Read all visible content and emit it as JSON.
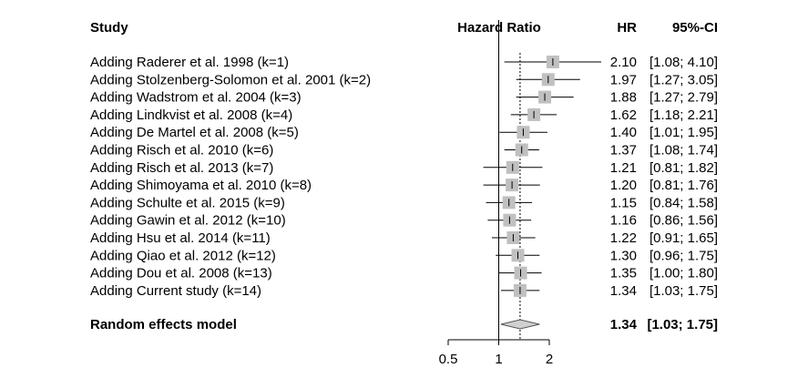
{
  "chart_data": {
    "type": "forest",
    "headers": {
      "study": "Study",
      "axis": "Hazard Ratio",
      "hr": "HR",
      "ci": "95%-CI"
    },
    "x_scale": "log",
    "xlim": [
      0.5,
      2
    ],
    "x_ticks": [
      {
        "value": 0.5,
        "label": "0.5"
      },
      {
        "value": 1,
        "label": "1"
      },
      {
        "value": 2,
        "label": "2"
      }
    ],
    "reference_line": 1,
    "pooled_line": 1.34,
    "studies": [
      {
        "label": "Adding Raderer et al. 1998 (k=1)",
        "hr": 2.1,
        "lower": 1.08,
        "upper": 4.1,
        "hr_text": "2.10",
        "ci_text": "[1.08; 4.10]"
      },
      {
        "label": "Adding Stolzenberg-Solomon et al. 2001 (k=2)",
        "hr": 1.97,
        "lower": 1.27,
        "upper": 3.05,
        "hr_text": "1.97",
        "ci_text": "[1.27; 3.05]"
      },
      {
        "label": "Adding Wadstrom et al. 2004 (k=3)",
        "hr": 1.88,
        "lower": 1.27,
        "upper": 2.79,
        "hr_text": "1.88",
        "ci_text": "[1.27; 2.79]"
      },
      {
        "label": "Adding Lindkvist et al. 2008 (k=4)",
        "hr": 1.62,
        "lower": 1.18,
        "upper": 2.21,
        "hr_text": "1.62",
        "ci_text": "[1.18; 2.21]"
      },
      {
        "label": "Adding De Martel et al. 2008 (k=5)",
        "hr": 1.4,
        "lower": 1.01,
        "upper": 1.95,
        "hr_text": "1.40",
        "ci_text": "[1.01; 1.95]"
      },
      {
        "label": "Adding Risch et al. 2010 (k=6)",
        "hr": 1.37,
        "lower": 1.08,
        "upper": 1.74,
        "hr_text": "1.37",
        "ci_text": "[1.08; 1.74]"
      },
      {
        "label": "Adding Risch et al. 2013 (k=7)",
        "hr": 1.21,
        "lower": 0.81,
        "upper": 1.82,
        "hr_text": "1.21",
        "ci_text": "[0.81; 1.82]"
      },
      {
        "label": "Adding Shimoyama et al. 2010 (k=8)",
        "hr": 1.2,
        "lower": 0.81,
        "upper": 1.76,
        "hr_text": "1.20",
        "ci_text": "[0.81; 1.76]"
      },
      {
        "label": "Adding Schulte et al. 2015 (k=9)",
        "hr": 1.15,
        "lower": 0.84,
        "upper": 1.58,
        "hr_text": "1.15",
        "ci_text": "[0.84; 1.58]"
      },
      {
        "label": "Adding Gawin et al. 2012 (k=10)",
        "hr": 1.16,
        "lower": 0.86,
        "upper": 1.56,
        "hr_text": "1.16",
        "ci_text": "[0.86; 1.56]"
      },
      {
        "label": "Adding Hsu et al. 2014 (k=11)",
        "hr": 1.22,
        "lower": 0.91,
        "upper": 1.65,
        "hr_text": "1.22",
        "ci_text": "[0.91; 1.65]"
      },
      {
        "label": "Adding Qiao et al. 2012 (k=12)",
        "hr": 1.3,
        "lower": 0.96,
        "upper": 1.75,
        "hr_text": "1.30",
        "ci_text": "[0.96; 1.75]"
      },
      {
        "label": "Adding Dou et al. 2008 (k=13)",
        "hr": 1.35,
        "lower": 1.0,
        "upper": 1.8,
        "hr_text": "1.35",
        "ci_text": "[1.00; 1.80]"
      },
      {
        "label": "Adding Current study (k=14)",
        "hr": 1.34,
        "lower": 1.03,
        "upper": 1.75,
        "hr_text": "1.34",
        "ci_text": "[1.03; 1.75]"
      }
    ],
    "summary": {
      "label": "Random effects model",
      "hr": 1.34,
      "lower": 1.03,
      "upper": 1.75,
      "hr_text": "1.34",
      "ci_text": "[1.03; 1.75]"
    },
    "colors": {
      "box": "#c0c0c0",
      "diamond": "#d0d0d0",
      "line": "#000000"
    }
  }
}
